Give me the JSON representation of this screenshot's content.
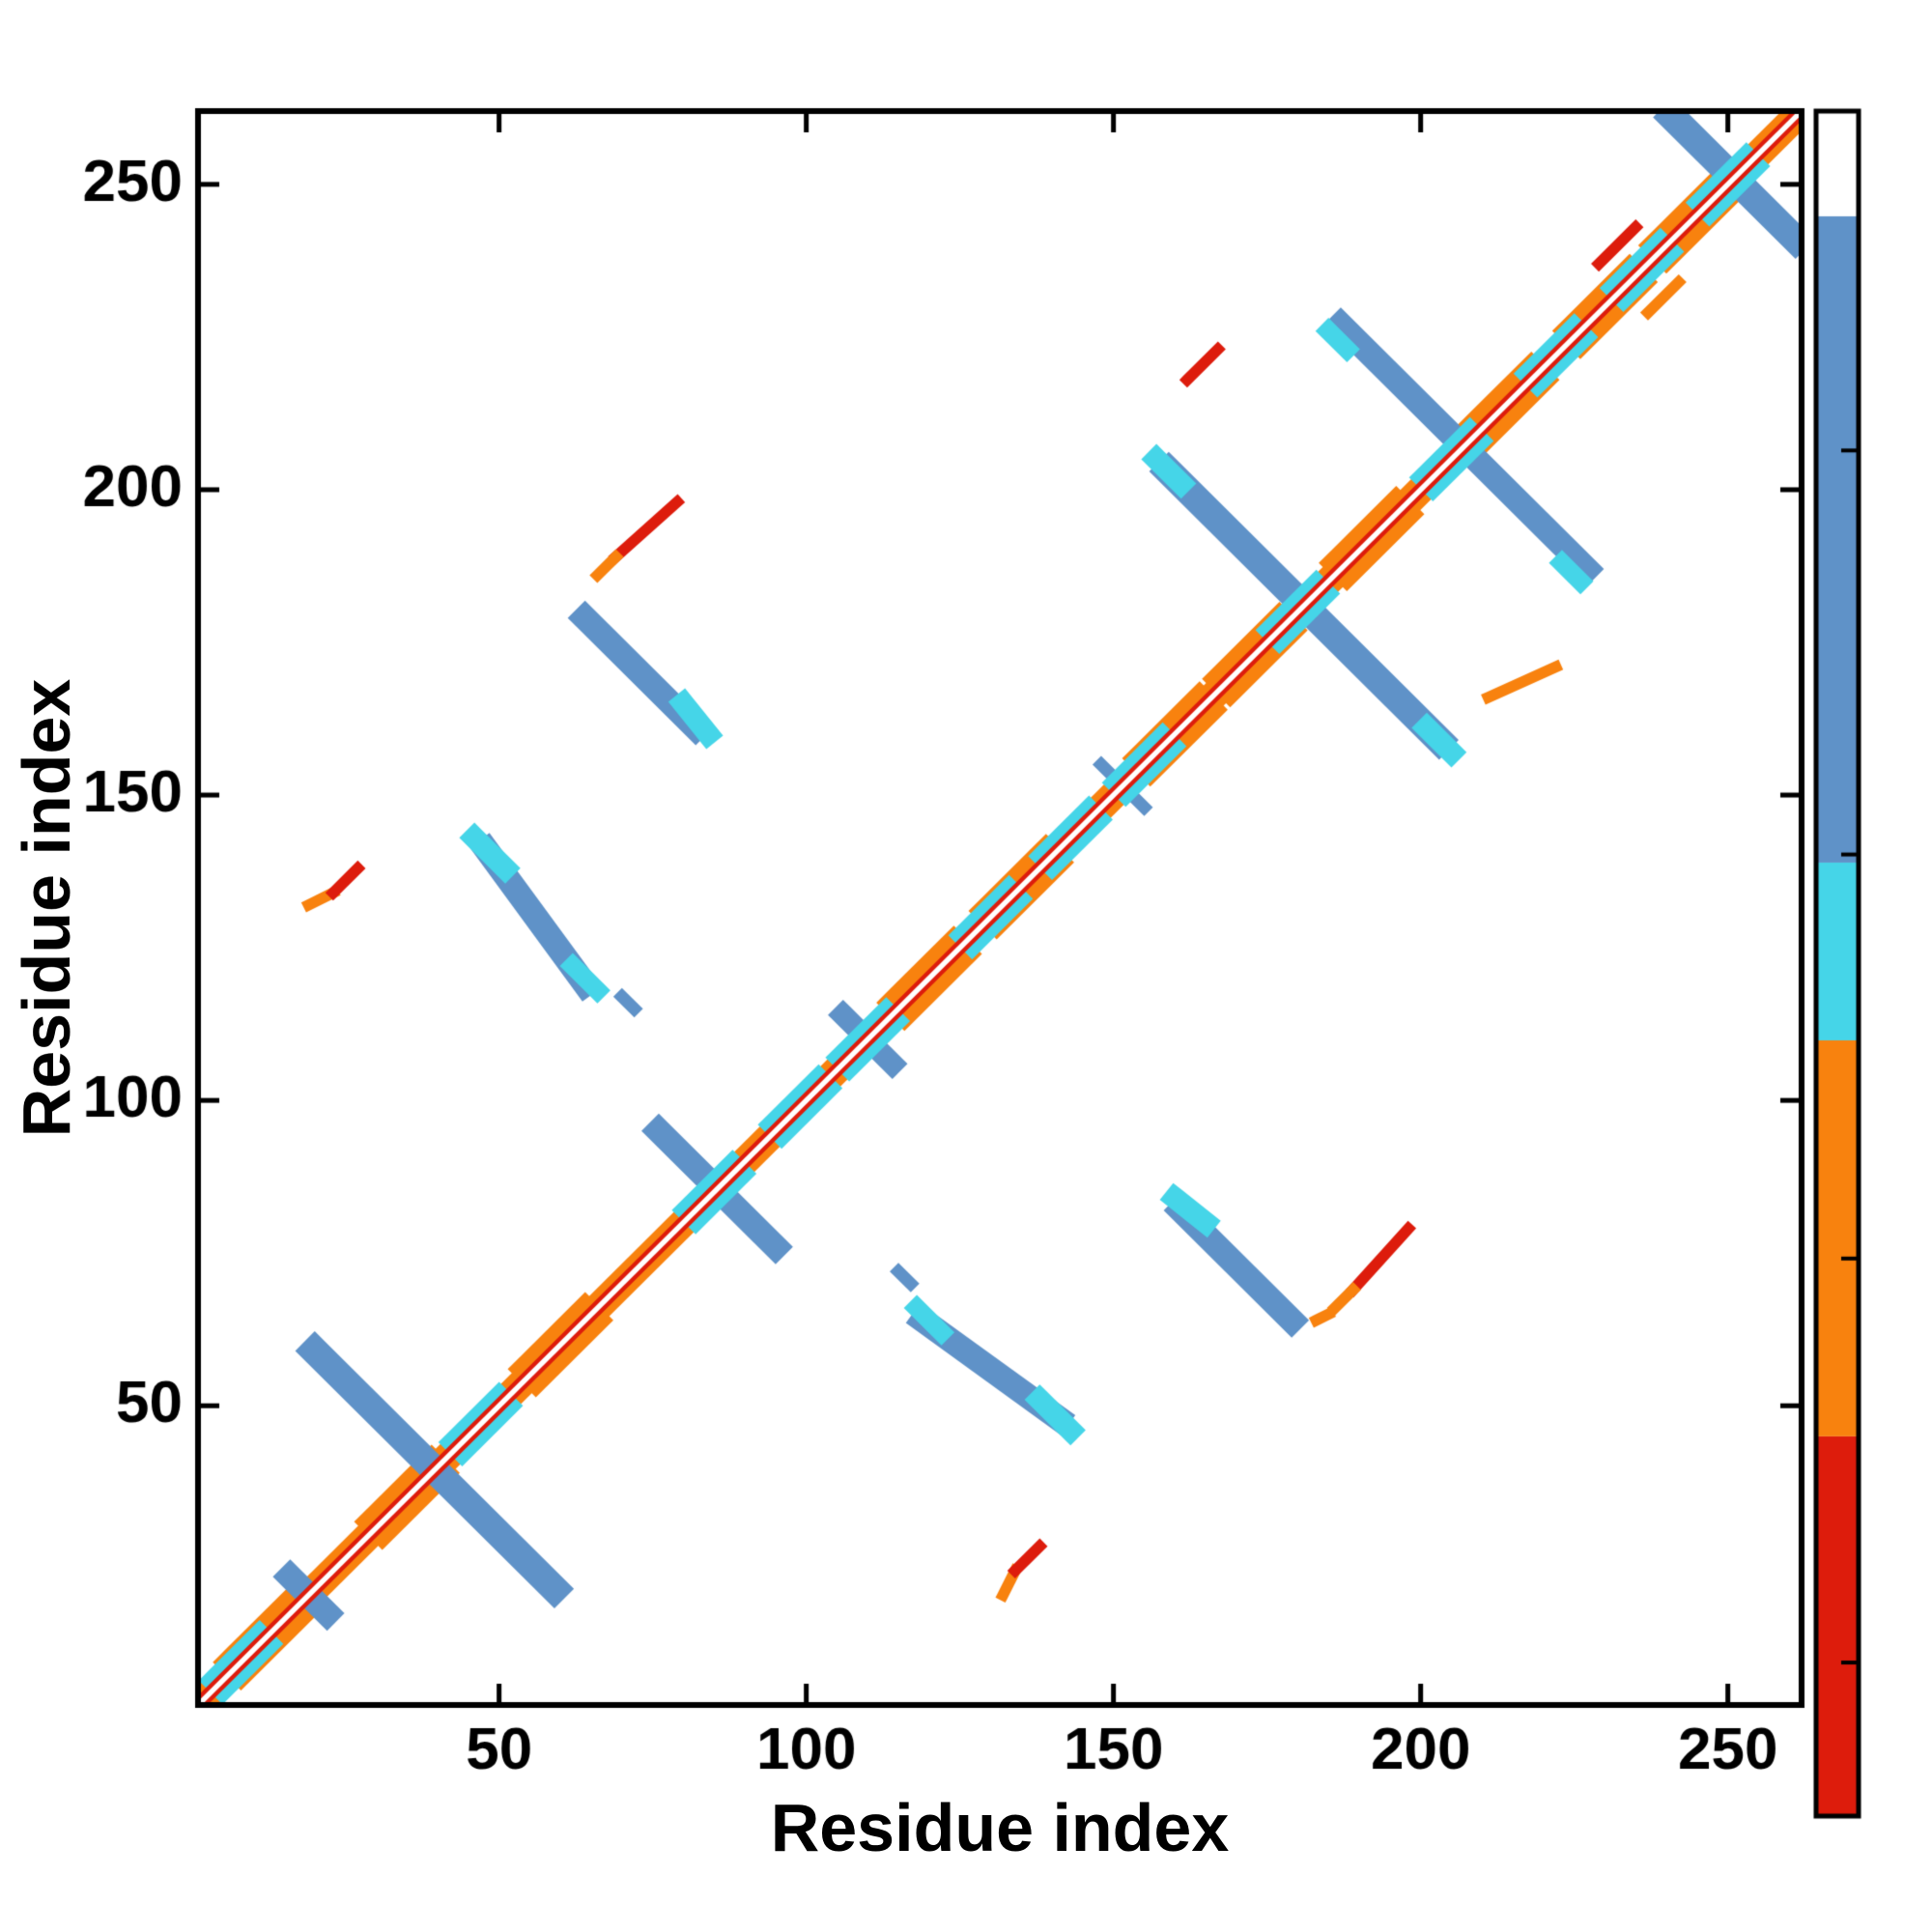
{
  "figure": {
    "background": "#ffffff",
    "kind": "protein residue contact map with colorbar"
  },
  "chart_data": {
    "type": "heatmap",
    "title": "",
    "xlabel": "Residue index",
    "ylabel": "Residue index",
    "xlim": [
      1,
      262
    ],
    "ylim": [
      1,
      262
    ],
    "x_ticks": [
      50,
      100,
      150,
      200,
      250
    ],
    "y_ticks": [
      50,
      100,
      150,
      200,
      250
    ],
    "grid": false,
    "legend_position": "colorbar-right",
    "colors": {
      "red": "#dd1c0c",
      "orange": "#f8820e",
      "cyan": "#45d5e8",
      "blue": "#5f92c8",
      "white": "#ffffff",
      "frame": "#000000"
    },
    "colorbar": {
      "ticks": [
        0,
        50,
        100,
        150
      ],
      "vmin": -19,
      "vmax": 192,
      "bands": [
        [
          -19,
          28,
          "red"
        ],
        [
          28,
          77,
          "orange"
        ],
        [
          77,
          99,
          "cyan"
        ],
        [
          99,
          179,
          "blue"
        ],
        [
          179,
          192,
          "white"
        ]
      ]
    },
    "diagonal": {
      "orange_width": 4.6,
      "red_width": 2.2,
      "white_width": 0.85
    },
    "diag_orange_patches": [
      12,
      35,
      60,
      120,
      135,
      160,
      173,
      192,
      214,
      230,
      244
    ],
    "diag_cyan_patches": [
      8,
      47,
      85,
      99,
      110,
      130,
      143,
      155,
      180,
      205,
      222,
      236,
      250
    ],
    "segments": [
      [
        20,
        59,
        59,
        20,
        "blue",
        4.5
      ],
      [
        16,
        22,
        22,
        16,
        "blue",
        4.0
      ],
      [
        76,
        95,
        95,
        76,
        "blue",
        4.0
      ],
      [
        106,
        114,
        114,
        106,
        "blue",
        3.5
      ],
      [
        148,
        155,
        155,
        148,
        "blue",
        2.0
      ],
      [
        159,
        203,
        203,
        159,
        "blue",
        4.5
      ],
      [
        187,
        227,
        227,
        187,
        "blue",
        4.0
      ],
      [
        241,
        261,
        261,
        241,
        "blue",
        4.5
      ],
      [
        48,
        141,
        64,
        119,
        "blue",
        4.0
      ],
      [
        119,
        64,
        141,
        48,
        "blue",
        4.0
      ],
      [
        64,
        179,
        82,
        161,
        "blue",
        4.0
      ],
      [
        161,
        82,
        179,
        64,
        "blue",
        4.0
      ],
      [
        115,
        72,
        117,
        70,
        "blue",
        2.0
      ],
      [
        70,
        117,
        72,
        115,
        "blue",
        2.0
      ],
      [
        80,
        165,
        84,
        160,
        "cyan",
        3.5
      ],
      [
        160,
        84,
        165,
        80,
        "cyan",
        3.5
      ],
      [
        62,
        122,
        66,
        118,
        "cyan",
        3.0
      ],
      [
        118,
        66,
        122,
        62,
        "cyan",
        3.0
      ],
      [
        138,
        51,
        143,
        46,
        "cyan",
        3.5
      ],
      [
        46,
        143,
        51,
        138,
        "cyan",
        3.5
      ],
      [
        157,
        205,
        161,
        201,
        "cyan",
        3.5
      ],
      [
        201,
        161,
        205,
        157,
        "cyan",
        3.5
      ],
      [
        185,
        226,
        188,
        223,
        "cyan",
        3.0
      ],
      [
        223,
        188,
        226,
        185,
        "cyan",
        3.0
      ],
      [
        69,
        189,
        79,
        198,
        "red",
        1.8
      ],
      [
        66,
        186,
        69,
        189,
        "orange",
        1.8
      ],
      [
        189,
        69,
        198,
        79,
        "red",
        1.8
      ],
      [
        186,
        66,
        189,
        69,
        "orange",
        1.8
      ],
      [
        183,
        64,
        185,
        65,
        "orange",
        1.8
      ],
      [
        19,
        132,
        23,
        134,
        "orange",
        1.8
      ],
      [
        23,
        134,
        27,
        138,
        "red",
        1.8
      ],
      [
        132,
        19,
        134,
        23,
        "orange",
        1.8
      ],
      [
        134,
        23,
        138,
        27,
        "red",
        1.8
      ],
      [
        211,
        166,
        222,
        171,
        "orange",
        1.8
      ],
      [
        162,
        218,
        167,
        223,
        "red",
        1.8
      ],
      [
        229,
        237,
        235,
        243,
        "red",
        1.8
      ],
      [
        237,
        229,
        242,
        234,
        "orange",
        1.8
      ]
    ]
  }
}
